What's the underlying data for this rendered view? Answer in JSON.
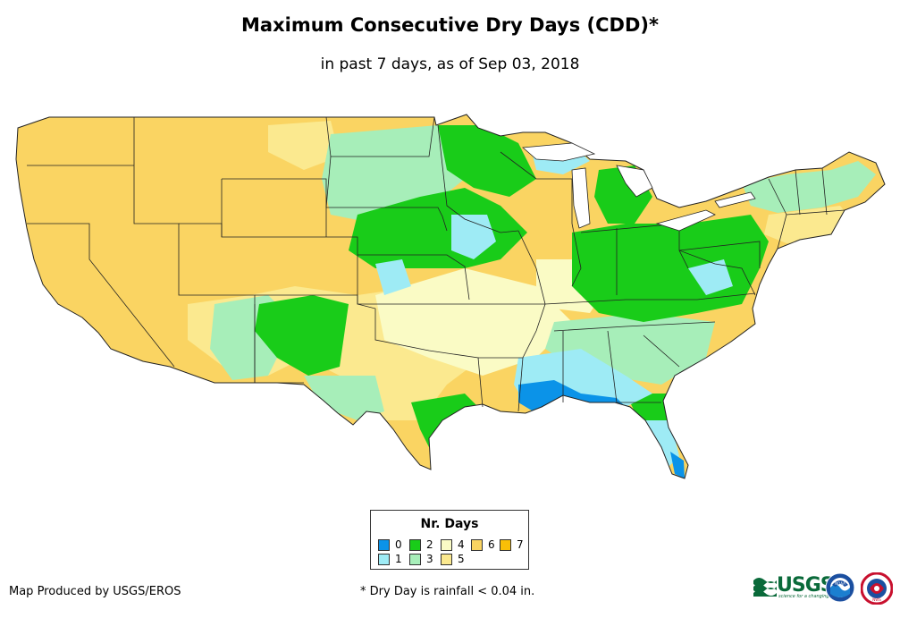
{
  "title": "Maximum Consecutive Dry Days (CDD)*",
  "subtitle": "in past 7 days, as of Sep 03, 2018",
  "legend": {
    "title": "Nr. Days",
    "items": [
      {
        "label": "0",
        "color": "#0b93e8"
      },
      {
        "label": "1",
        "color": "#9eebf5"
      },
      {
        "label": "2",
        "color": "#19cc19"
      },
      {
        "label": "3",
        "color": "#a7eeb9"
      },
      {
        "label": "4",
        "color": "#fafbc5"
      },
      {
        "label": "5",
        "color": "#fbe98f"
      },
      {
        "label": "6",
        "color": "#fad462"
      },
      {
        "label": "7",
        "color": "#f9bf07"
      }
    ]
  },
  "credit": "Map Produced by USGS/EROS",
  "footnote": "* Dry Day is rainfall < 0.04 in.",
  "logos": {
    "usgs_text": "USGS",
    "usgs_tagline": "science for a changing world",
    "noaa_text": "NOAA",
    "nws_text": "NWS"
  }
}
